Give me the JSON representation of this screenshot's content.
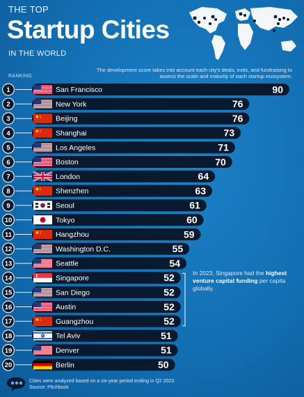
{
  "header": {
    "top_line": "THE TOP",
    "title": "Startup Cities",
    "sub_line": "IN THE WORLD",
    "ranking_label": "RANKING",
    "description": "The development score takes into account each city's deals, exits, and fundraising to assess the scale and maturity of each startup ecosystem."
  },
  "callout": {
    "pre": "In 2023, Singapore had the",
    "bold": "highest venture capital funding",
    "post": "per capita globally."
  },
  "footer": {
    "note": "Cities were analyzed based on a six-year period ending in Q2 2023.",
    "source": "Source: Pitchbook"
  },
  "colors": {
    "bar": "#0a1a2e",
    "badge": "#0a1a2e",
    "connector": "#e8f2ff"
  },
  "chart_data": {
    "type": "bar",
    "orientation": "horizontal",
    "title": "Startup Cities",
    "value_range": [
      0,
      90
    ],
    "rows": [
      {
        "rank": "1",
        "city": "San Francisco",
        "value": 90,
        "flag": "us"
      },
      {
        "rank": "2",
        "city": "New York",
        "value": 76,
        "flag": "us"
      },
      {
        "rank": "3",
        "city": "Beijing",
        "value": 76,
        "flag": "cn"
      },
      {
        "rank": "4",
        "city": "Shanghai",
        "value": 73,
        "flag": "cn"
      },
      {
        "rank": "5",
        "city": "Los Angeles",
        "value": 71,
        "flag": "us"
      },
      {
        "rank": "6",
        "city": "Boston",
        "value": 70,
        "flag": "us"
      },
      {
        "rank": "7",
        "city": "London",
        "value": 64,
        "flag": "uk"
      },
      {
        "rank": "8",
        "city": "Shenzhen",
        "value": 63,
        "flag": "cn"
      },
      {
        "rank": "9",
        "city": "Seoul",
        "value": 61,
        "flag": "kr"
      },
      {
        "rank": "10",
        "city": "Tokyo",
        "value": 60,
        "flag": "jp"
      },
      {
        "rank": "11",
        "city": "Hangzhou",
        "value": 59,
        "flag": "cn"
      },
      {
        "rank": "12",
        "city": "Washington D.C.",
        "value": 55,
        "flag": "us"
      },
      {
        "rank": "13",
        "city": "Seattle",
        "value": 54,
        "flag": "us"
      },
      {
        "rank": "14",
        "city": "Singapore",
        "value": 52,
        "flag": "sg"
      },
      {
        "rank": "15",
        "city": "San Diego",
        "value": 52,
        "flag": "us"
      },
      {
        "rank": "16",
        "city": "Austin",
        "value": 52,
        "flag": "us"
      },
      {
        "rank": "17",
        "city": "Guangzhou",
        "value": 52,
        "flag": "cn"
      },
      {
        "rank": "18",
        "city": "Tel Aviv",
        "value": 51,
        "flag": "il"
      },
      {
        "rank": "19",
        "city": "Denver",
        "value": 51,
        "flag": "us"
      },
      {
        "rank": "20",
        "city": "Berlin",
        "value": 50,
        "flag": "de"
      }
    ]
  }
}
